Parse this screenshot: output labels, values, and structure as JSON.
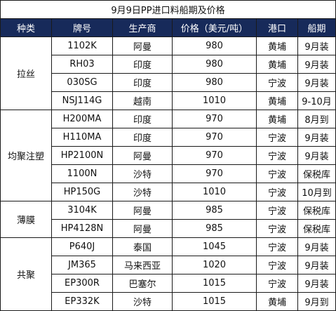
{
  "title": "9月9日PP进口料船期及价格",
  "columns": [
    "种类",
    "牌号",
    "生产商",
    "价格（美元/吨）",
    "港口",
    "船期"
  ],
  "groups": [
    {
      "category": "拉丝",
      "rows": [
        {
          "grade": "1102K",
          "producer": "阿曼",
          "price": "980",
          "port": "黄埔",
          "shipment": "9月装"
        },
        {
          "grade": "RH03",
          "producer": "印度",
          "price": "980",
          "port": "黄埔",
          "shipment": "9月装"
        },
        {
          "grade": "030SG",
          "producer": "印度",
          "price": "980",
          "port": "宁波",
          "shipment": "9月装"
        },
        {
          "grade": "NSJ114G",
          "producer": "越南",
          "price": "1010",
          "port": "黄埔",
          "shipment": "9-10月"
        }
      ]
    },
    {
      "category": "均聚注塑",
      "rows": [
        {
          "grade": "H200MA",
          "producer": "印度",
          "price": "970",
          "port": "黄埔",
          "shipment": "8月到"
        },
        {
          "grade": "H110MA",
          "producer": "印度",
          "price": "970",
          "port": "宁波",
          "shipment": "9月装"
        },
        {
          "grade": "HP2100N",
          "producer": "阿曼",
          "price": "970",
          "port": "宁波",
          "shipment": "9月装"
        },
        {
          "grade": "1100N",
          "producer": "沙特",
          "price": "970",
          "port": "宁波",
          "shipment": "保税库"
        },
        {
          "grade": "HP150G",
          "producer": "沙特",
          "price": "1010",
          "port": "宁波",
          "shipment": "10月到"
        }
      ]
    },
    {
      "category": "薄膜",
      "rows": [
        {
          "grade": "3104K",
          "producer": "阿曼",
          "price": "985",
          "port": "宁波",
          "shipment": "保税库"
        },
        {
          "grade": "HP4128N",
          "producer": "阿曼",
          "price": "985",
          "port": "宁波",
          "shipment": "保税库"
        }
      ]
    },
    {
      "category": "共聚",
      "rows": [
        {
          "grade": "P640J",
          "producer": "泰国",
          "price": "1045",
          "port": "宁波",
          "shipment": "9月装"
        },
        {
          "grade": "JM365",
          "producer": "马来西亚",
          "price": "1020",
          "port": "宁波",
          "shipment": "9月装"
        },
        {
          "grade": "EP300R",
          "producer": "巴塞尔",
          "price": "1015",
          "port": "宁波",
          "shipment": "9月装"
        },
        {
          "grade": "EP332K",
          "producer": "沙特",
          "price": "1015",
          "port": "黄埔",
          "shipment": "9月到"
        }
      ]
    }
  ],
  "colors": {
    "header_bg": "#172a5a",
    "header_text": "#ffffff",
    "border": "#1a1a1a"
  }
}
